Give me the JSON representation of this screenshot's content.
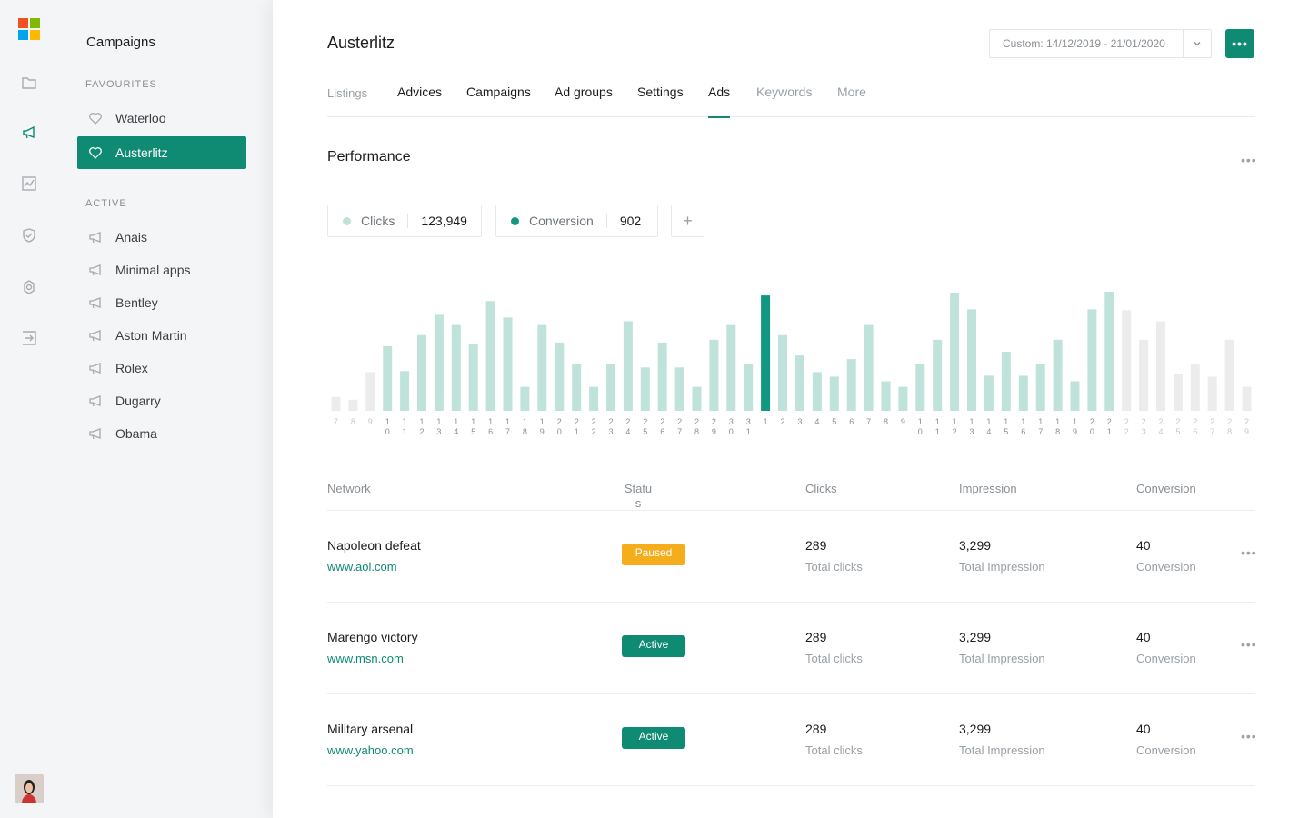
{
  "rail": {
    "icons": [
      "folder-icon",
      "megaphone-icon",
      "chart-icon",
      "shield-icon",
      "settings-icon",
      "logout-icon"
    ],
    "logo_colors": [
      "#f25022",
      "#7fba00",
      "#00a4ef",
      "#ffb900"
    ]
  },
  "panel": {
    "title": "Campaigns",
    "favourites_label": "FAVOURITES",
    "favourites": [
      "Waterloo",
      "Austerlitz"
    ],
    "active_label": "ACTIVE",
    "active": [
      "Anais",
      "Minimal apps",
      "Bentley",
      "Aston Martin",
      "Rolex",
      "Dugarry",
      "Obama"
    ]
  },
  "header": {
    "title": "Austerlitz",
    "date_range": "Custom: 14/12/2019 - 21/01/2020",
    "more_label": "•••"
  },
  "tabs": [
    "Listings",
    "Advices",
    "Campaigns",
    "Ad groups",
    "Settings",
    "Ads",
    "Keywords",
    "More"
  ],
  "active_tab": "Ads",
  "performance": {
    "title": "Performance",
    "more": "•••",
    "metrics": [
      {
        "label": "Clicks",
        "value": "123,949",
        "color": "#bfe3da"
      },
      {
        "label": "Conversion",
        "value": "902",
        "color": "#129880"
      }
    ],
    "add_label": "+"
  },
  "chart_data": {
    "type": "bar",
    "categories": [
      "7",
      "8",
      "9",
      "10",
      "11",
      "12",
      "13",
      "14",
      "15",
      "16",
      "17",
      "18",
      "19",
      "20",
      "21",
      "22",
      "23",
      "24",
      "25",
      "26",
      "27",
      "28",
      "29",
      "30",
      "31",
      "1",
      "2",
      "3",
      "4",
      "5",
      "6",
      "7",
      "8",
      "9",
      "10",
      "11",
      "12",
      "13",
      "14",
      "15",
      "16",
      "17",
      "18",
      "19",
      "20",
      "21",
      "22",
      "23",
      "24",
      "25",
      "26",
      "27",
      "28",
      "29"
    ],
    "values": [
      15,
      12,
      42,
      70,
      43,
      82,
      104,
      93,
      73,
      119,
      101,
      26,
      93,
      74,
      51,
      26,
      51,
      97,
      47,
      74,
      47,
      26,
      77,
      93,
      51,
      125,
      82,
      60,
      42,
      37,
      56,
      93,
      32,
      26,
      51,
      77,
      128,
      110,
      38,
      64,
      38,
      51,
      77,
      32,
      110,
      129,
      109,
      77,
      97,
      40,
      51,
      37,
      77,
      26
    ],
    "highlight_index": 25,
    "colors": {
      "bar": "#bfe3da",
      "highlight": "#129880",
      "future": "#ececec"
    },
    "future_from_index": 46
  },
  "table": {
    "headers": [
      "Network",
      "Status",
      "Clicks",
      "Impression",
      "Conversion"
    ],
    "rows": [
      {
        "name": "Napoleon defeat",
        "url": "www.aol.com",
        "status": "Paused",
        "status_type": "paused",
        "clicks": "289",
        "clicks_sub": "Total clicks",
        "impression": "3,299",
        "impression_sub": "Total Impression",
        "conversion": "40",
        "conversion_sub": "Conversion"
      },
      {
        "name": "Marengo victory",
        "url": "www.msn.com",
        "status": "Active",
        "status_type": "active",
        "clicks": "289",
        "clicks_sub": "Total clicks",
        "impression": "3,299",
        "impression_sub": "Total Impression",
        "conversion": "40",
        "conversion_sub": "Conversion"
      },
      {
        "name": "Military arsenal",
        "url": "www.yahoo.com",
        "status": "Active",
        "status_type": "active",
        "clicks": "289",
        "clicks_sub": "Total clicks",
        "impression": "3,299",
        "impression_sub": "Total Impression",
        "conversion": "40",
        "conversion_sub": "Conversion"
      }
    ],
    "row_more": "•••"
  }
}
